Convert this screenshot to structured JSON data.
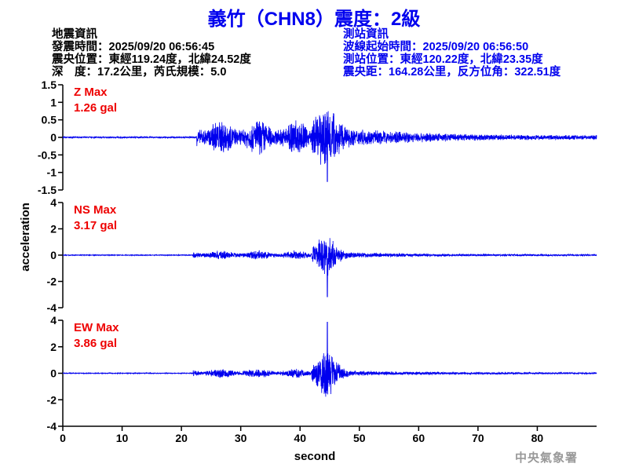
{
  "header": {
    "title": "義竹（CHN8）震度：2級",
    "quake_info": [
      "地震資訊",
      "發震時間：2025/09/20 06:56:45",
      "震央位置：東經119.24度，北緯24.52度",
      "深　度：17.2公里，芮氏規模：5.0"
    ],
    "station_info": [
      "測站資訊",
      "波線起始時間：2025/09/20 06:56:50",
      "測站位置：東經120.22度，北緯23.35度",
      "震央距：164.28公里，反方位角：322.51度"
    ]
  },
  "footer": {
    "agency": "中央氣象署"
  },
  "chart_data": {
    "type": "line",
    "xlabel": "second",
    "ylabel": "acceleration",
    "xlim": [
      0,
      90
    ],
    "xticks": [
      0,
      10,
      20,
      30,
      40,
      50,
      60,
      70,
      80
    ],
    "line_color": "#0000ee",
    "panels": [
      {
        "component": "Z",
        "max_label": "Z Max",
        "max_value": "1.26 gal",
        "ylim": [
          -1.5,
          1.5
        ],
        "yticks": [
          1.5,
          1,
          0.5,
          0,
          -0.5,
          -1,
          -1.5
        ]
      },
      {
        "component": "NS",
        "max_label": "NS Max",
        "max_value": "3.17 gal",
        "ylim": [
          -4,
          4
        ],
        "yticks": [
          4,
          2,
          0,
          -2,
          -4
        ]
      },
      {
        "component": "EW",
        "max_label": "EW Max",
        "max_value": "3.86 gal",
        "ylim": [
          -4,
          4
        ],
        "yticks": [
          4,
          2,
          0,
          -2,
          -4
        ]
      }
    ]
  }
}
